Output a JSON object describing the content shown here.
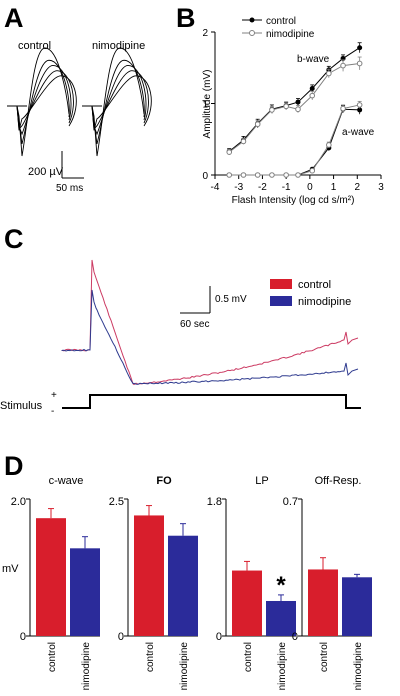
{
  "panel_letters": [
    "A",
    "B",
    "C",
    "D"
  ],
  "colors": {
    "control": "#d81e2c",
    "nimodipine": "#2b2b9a",
    "control_trace": "#cc3b63",
    "nimodipine_trace": "#2f3b8f",
    "black": "#000000",
    "gray": "#808080"
  },
  "panelA": {
    "label_control": "control",
    "label_nimodipine": "nimodipine",
    "scale_amplitude": "200 µV",
    "scale_time": "50 ms"
  },
  "panelB": {
    "legend": [
      "control",
      "nimodipine"
    ],
    "xlabel": "Flash Intensity (log cd s/m²)",
    "ylabel": "Amplitude (mV)",
    "annotation_b": "b-wave",
    "annotation_a": "a-wave"
  },
  "panelC": {
    "legend": [
      "control",
      "nimodipine"
    ],
    "scale_amplitude": "0.5 mV",
    "scale_time": "60 sec",
    "stimulus_label": "Stimulus",
    "stimulus_plus": "+",
    "stimulus_minus": "-"
  },
  "panelD": {
    "ylabel": "mV"
  },
  "chart_data": [
    {
      "type": "line",
      "panel": "B",
      "xlim": [
        -4,
        3
      ],
      "ylim": [
        0,
        2
      ],
      "xticks": [
        -4,
        -3,
        -2,
        -1,
        0,
        1,
        2,
        3
      ],
      "yticks": [
        0,
        1,
        2
      ],
      "series": [
        {
          "name": "control",
          "wave": "b-wave",
          "x": [
            -3.4,
            -2.8,
            -2.2,
            -1.6,
            -1.0,
            -0.5,
            0.1,
            0.8,
            1.4,
            2.1
          ],
          "y": [
            0.33,
            0.49,
            0.72,
            0.92,
            0.97,
            1.02,
            1.21,
            1.47,
            1.63,
            1.78
          ],
          "err": [
            0.04,
            0.05,
            0.06,
            0.06,
            0.05,
            0.05,
            0.05,
            0.05,
            0.05,
            0.07
          ]
        },
        {
          "name": "nimodipine",
          "wave": "b-wave",
          "x": [
            -3.4,
            -2.8,
            -2.2,
            -1.6,
            -1.0,
            -0.5,
            0.1,
            0.8,
            1.4,
            2.1
          ],
          "y": [
            0.32,
            0.47,
            0.71,
            0.91,
            0.96,
            0.92,
            1.11,
            1.42,
            1.53,
            1.56
          ],
          "err": [
            0.04,
            0.04,
            0.05,
            0.05,
            0.05,
            0.05,
            0.06,
            0.06,
            0.08,
            0.09
          ]
        },
        {
          "name": "control",
          "wave": "a-wave",
          "x": [
            -3.4,
            -2.8,
            -2.2,
            -1.6,
            -1.0,
            -0.5,
            0.1,
            0.8,
            1.4,
            2.1
          ],
          "y": [
            0.0,
            0.0,
            0.0,
            0.0,
            0.0,
            0.0,
            0.08,
            0.38,
            0.92,
            0.91
          ],
          "err": [
            0,
            0,
            0,
            0,
            0,
            0,
            0.02,
            0.04,
            0.05,
            0.06
          ]
        },
        {
          "name": "nimodipine",
          "wave": "a-wave",
          "x": [
            -3.4,
            -2.8,
            -2.2,
            -1.6,
            -1.0,
            -0.5,
            0.1,
            0.8,
            1.4,
            2.1
          ],
          "y": [
            0.0,
            0.0,
            0.0,
            0.0,
            0.0,
            0.0,
            0.06,
            0.42,
            0.93,
            0.98
          ],
          "err": [
            0,
            0,
            0,
            0,
            0,
            0,
            0.02,
            0.04,
            0.05,
            0.05
          ]
        }
      ]
    },
    {
      "type": "bar",
      "panel": "D",
      "subplots": [
        {
          "title": "c-wave",
          "ymax": 2.0,
          "ytick_labels": [
            "2.0",
            "0"
          ],
          "categories": [
            "control",
            "nimodipine"
          ],
          "values": [
            1.72,
            1.28
          ],
          "errors": [
            0.14,
            0.17
          ]
        },
        {
          "title": "FO",
          "ymax": 2.5,
          "ytick_labels": [
            "2.5",
            "0"
          ],
          "categories": [
            "control",
            "nimodipine"
          ],
          "values": [
            2.2,
            1.83
          ],
          "errors": [
            0.18,
            0.22
          ]
        },
        {
          "title": "LP",
          "ymax": 1.8,
          "ytick_labels": [
            "1.8",
            "0"
          ],
          "categories": [
            "control",
            "nimodipine"
          ],
          "values": [
            0.86,
            0.46
          ],
          "errors": [
            0.12,
            0.08
          ],
          "significance": [
            "",
            "*"
          ]
        },
        {
          "title": "Off-Resp.",
          "ymax": 0.7,
          "ytick_labels": [
            "0.7",
            "0"
          ],
          "categories": [
            "control",
            "nimodipine"
          ],
          "values": [
            0.34,
            0.3
          ],
          "errors": [
            0.06,
            0.015
          ]
        }
      ]
    }
  ]
}
